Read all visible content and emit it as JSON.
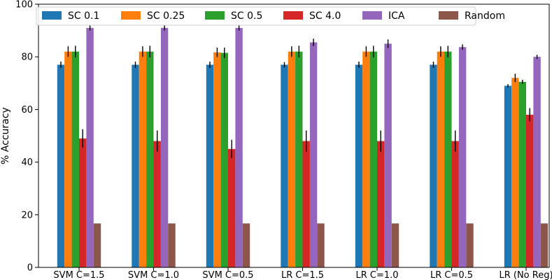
{
  "chart_data": {
    "type": "bar",
    "title": "",
    "xlabel": "",
    "ylabel": "% Accuracy",
    "ylim": [
      0,
      100
    ],
    "yticks": [
      0,
      20,
      40,
      60,
      80,
      100
    ],
    "grid": false,
    "legend_position": "top",
    "categories": [
      "SVM C=1.5",
      "SVM C=1.0",
      "SVM C=0.5",
      "LR C=1.5",
      "LR C=1.0",
      "LR C=0.5",
      "LR (No Reg)"
    ],
    "series": [
      {
        "name": "SC 0.1",
        "color": "#1f77b4",
        "values": [
          77,
          77,
          77,
          77,
          77,
          77,
          69
        ],
        "errors": [
          1.2,
          1.2,
          1.2,
          1.0,
          1.2,
          1.2,
          0.6
        ]
      },
      {
        "name": "SC 0.25",
        "color": "#ff7f0e",
        "values": [
          82,
          82,
          81.7,
          82,
          82,
          82,
          72
        ],
        "errors": [
          2.0,
          2.0,
          1.8,
          2.0,
          2.0,
          2.0,
          1.6
        ]
      },
      {
        "name": "SC 0.5",
        "color": "#2ca02c",
        "values": [
          82,
          82,
          81.5,
          82,
          82,
          82,
          70.5
        ],
        "errors": [
          2.2,
          2.2,
          2.0,
          2.2,
          2.2,
          2.2,
          0.8
        ]
      },
      {
        "name": "SC 4.0",
        "color": "#d62728",
        "values": [
          49,
          48,
          45,
          48,
          48,
          48,
          58
        ],
        "errors": [
          3.5,
          4.0,
          3.5,
          4.0,
          4.0,
          4.0,
          2.5
        ]
      },
      {
        "name": "ICA",
        "color": "#9467bd",
        "values": [
          91,
          91,
          91,
          85.5,
          85,
          83.7,
          80
        ],
        "errors": [
          1.0,
          1.0,
          1.0,
          1.4,
          1.6,
          1.0,
          0.8
        ]
      },
      {
        "name": "Random",
        "color": "#8c564b",
        "values": [
          16.7,
          16.7,
          16.7,
          16.7,
          16.7,
          16.7,
          16.7
        ],
        "errors": [
          0,
          0,
          0,
          0,
          0,
          0,
          0
        ]
      }
    ]
  }
}
